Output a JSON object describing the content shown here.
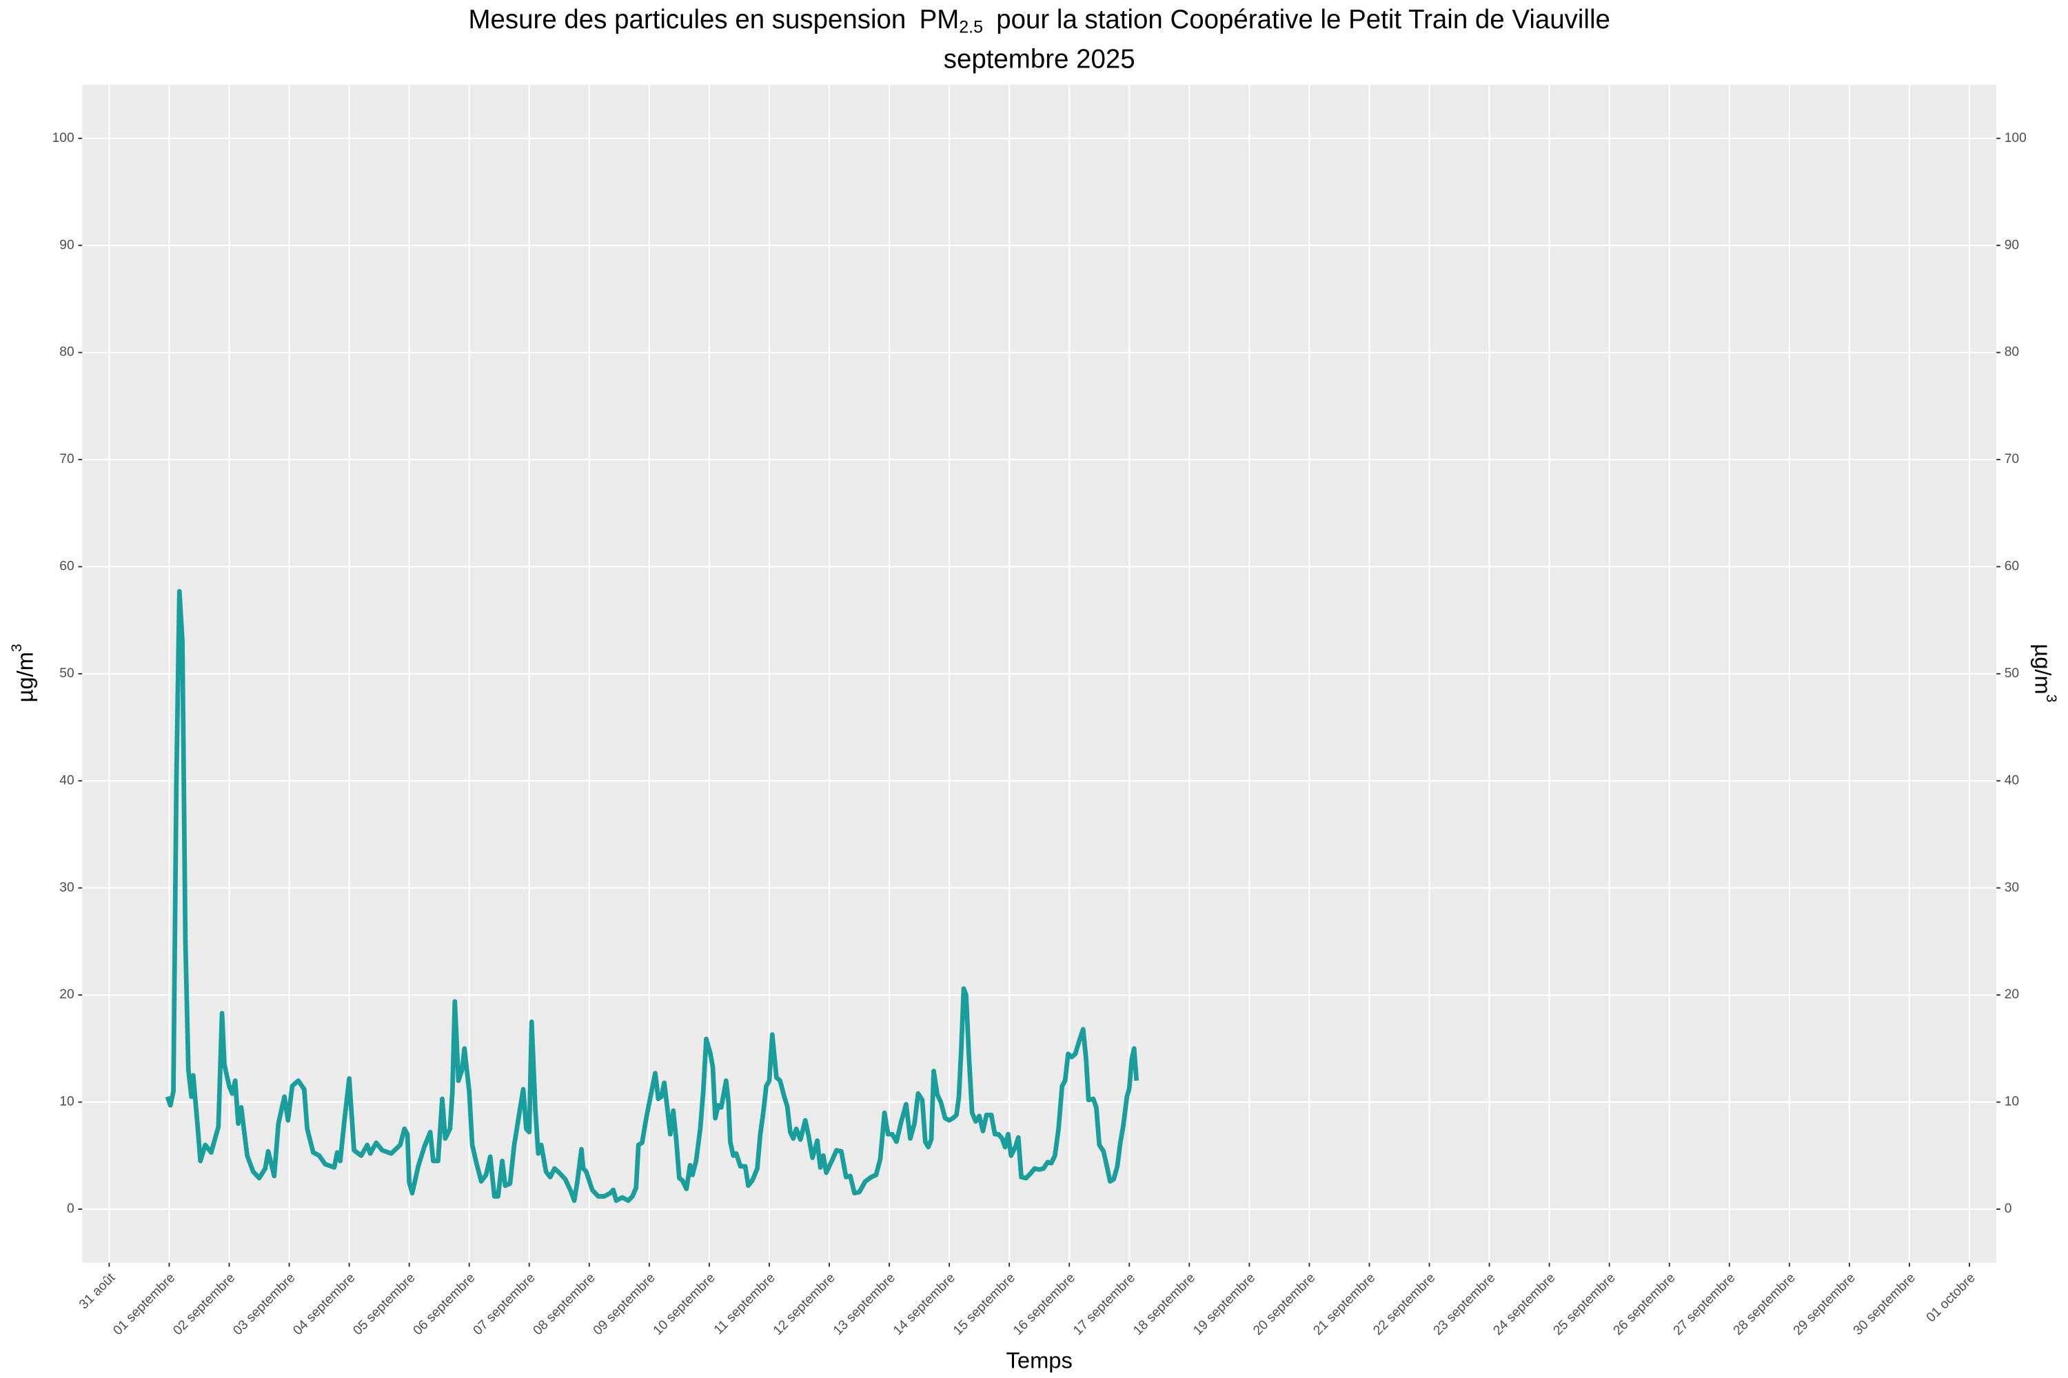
{
  "chart_data": {
    "type": "line",
    "title": [
      "Mesure des particules en suspension",
      "PM",
      "2.5",
      "pour la station Coopérative le Petit Train de Viauville"
    ],
    "subtitle": "septembre 2025",
    "xlabel": "Temps",
    "ylabel": [
      "µg/m",
      "3"
    ],
    "y2label": [
      "µg/m",
      "3"
    ],
    "color": "#1a9e9c",
    "grid": true,
    "xlim": [
      -0.45,
      31.45
    ],
    "ylim": [
      -5,
      105
    ],
    "y2lim": [
      -5,
      105
    ],
    "yticks": [
      0,
      10,
      20,
      30,
      40,
      50,
      60,
      70,
      80,
      90,
      100
    ],
    "y2ticks": [
      0,
      10,
      20,
      30,
      40,
      50,
      60,
      70,
      80,
      90,
      100
    ],
    "xticks": [
      {
        "value": 0,
        "label": "31 août"
      },
      {
        "value": 1,
        "label": "01 septembre"
      },
      {
        "value": 2,
        "label": "02 septembre"
      },
      {
        "value": 3,
        "label": "03 septembre"
      },
      {
        "value": 4,
        "label": "04 septembre"
      },
      {
        "value": 5,
        "label": "05 septembre"
      },
      {
        "value": 6,
        "label": "06 septembre"
      },
      {
        "value": 7,
        "label": "07 septembre"
      },
      {
        "value": 8,
        "label": "08 septembre"
      },
      {
        "value": 9,
        "label": "09 septembre"
      },
      {
        "value": 10,
        "label": "10 septembre"
      },
      {
        "value": 11,
        "label": "11 septembre"
      },
      {
        "value": 12,
        "label": "12 septembre"
      },
      {
        "value": 13,
        "label": "13 septembre"
      },
      {
        "value": 14,
        "label": "14 septembre"
      },
      {
        "value": 15,
        "label": "15 septembre"
      },
      {
        "value": 16,
        "label": "16 septembre"
      },
      {
        "value": 17,
        "label": "17 septembre"
      },
      {
        "value": 18,
        "label": "18 septembre"
      },
      {
        "value": 19,
        "label": "19 septembre"
      },
      {
        "value": 20,
        "label": "20 septembre"
      },
      {
        "value": 21,
        "label": "21 septembre"
      },
      {
        "value": 22,
        "label": "22 septembre"
      },
      {
        "value": 23,
        "label": "23 septembre"
      },
      {
        "value": 24,
        "label": "24 septembre"
      },
      {
        "value": 25,
        "label": "25 septembre"
      },
      {
        "value": 26,
        "label": "26 septembre"
      },
      {
        "value": 27,
        "label": "27 septembre"
      },
      {
        "value": 28,
        "label": "28 septembre"
      },
      {
        "value": 29,
        "label": "29 septembre"
      },
      {
        "value": 30,
        "label": "30 septembre"
      },
      {
        "value": 31,
        "label": "01 octobre"
      }
    ],
    "x": [
      0.97,
      1.02,
      1.07,
      1.12,
      1.17,
      1.22,
      1.27,
      1.32,
      1.37,
      1.4,
      1.47,
      1.52,
      1.6,
      1.7,
      1.82,
      1.88,
      1.92,
      2.0,
      2.05,
      2.1,
      2.15,
      2.2,
      2.3,
      2.4,
      2.5,
      2.6,
      2.65,
      2.75,
      2.82,
      2.92,
      2.98,
      3.05,
      3.15,
      3.25,
      3.3,
      3.4,
      3.5,
      3.6,
      3.75,
      3.8,
      3.85,
      3.92,
      4.0,
      4.08,
      4.2,
      4.3,
      4.35,
      4.45,
      4.55,
      4.7,
      4.85,
      4.92,
      4.97,
      5.0,
      5.05,
      5.15,
      5.25,
      5.35,
      5.4,
      5.48,
      5.55,
      5.6,
      5.68,
      5.72,
      5.76,
      5.82,
      5.88,
      5.92,
      6.0,
      6.05,
      6.12,
      6.2,
      6.28,
      6.35,
      6.42,
      6.48,
      6.55,
      6.6,
      6.68,
      6.75,
      6.85,
      6.9,
      6.95,
      7.0,
      7.04,
      7.1,
      7.15,
      7.2,
      7.28,
      7.35,
      7.42,
      7.5,
      7.6,
      7.7,
      7.75,
      7.8,
      7.87,
      7.9,
      7.95,
      8.05,
      8.15,
      8.25,
      8.35,
      8.4,
      8.45,
      8.55,
      8.65,
      8.72,
      8.78,
      8.82,
      8.88,
      8.95,
      9.02,
      9.1,
      9.15,
      9.2,
      9.25,
      9.3,
      9.35,
      9.4,
      9.45,
      9.5,
      9.55,
      9.62,
      9.68,
      9.72,
      9.78,
      9.85,
      9.9,
      9.95,
      10.02,
      10.06,
      10.1,
      10.15,
      10.2,
      10.28,
      10.32,
      10.35,
      10.4,
      10.45,
      10.52,
      10.6,
      10.65,
      10.72,
      10.8,
      10.85,
      10.9,
      10.95,
      11.0,
      11.05,
      11.12,
      11.18,
      11.25,
      11.3,
      11.35,
      11.4,
      11.45,
      11.52,
      11.6,
      11.65,
      11.72,
      11.8,
      11.85,
      11.9,
      11.95,
      12.05,
      12.12,
      12.2,
      12.28,
      12.35,
      12.42,
      12.5,
      12.6,
      12.7,
      12.78,
      12.85,
      12.92,
      12.98,
      13.05,
      13.12,
      13.2,
      13.28,
      13.35,
      13.42,
      13.48,
      13.55,
      13.6,
      13.65,
      13.7,
      13.74,
      13.8,
      13.86,
      13.93,
      14.0,
      14.06,
      14.12,
      14.16,
      14.2,
      14.24,
      14.28,
      14.33,
      14.38,
      14.44,
      14.5,
      14.56,
      14.62,
      14.7,
      14.76,
      14.82,
      14.88,
      14.93,
      14.98,
      15.03,
      15.1,
      15.15,
      15.2,
      15.28,
      15.35,
      15.42,
      15.5,
      15.57,
      15.64,
      15.7,
      15.76,
      15.82,
      15.88,
      15.93,
      15.98,
      16.04,
      16.1,
      16.17,
      16.23,
      16.28,
      16.32,
      16.4,
      16.45,
      16.5,
      16.57,
      16.63,
      16.68,
      16.74,
      16.8,
      16.85,
      16.9,
      16.96,
      17.0,
      17.04,
      17.08,
      17.12
    ],
    "values": [
      10.5,
      9.7,
      11,
      40,
      57.7,
      53,
      25,
      13,
      10.5,
      12.5,
      8,
      4.5,
      6,
      5.3,
      7.7,
      18.3,
      13.5,
      11.5,
      10.8,
      12,
      8,
      9.5,
      5,
      3.5,
      2.9,
      3.8,
      5.4,
      3.1,
      8,
      10.5,
      8.3,
      11.5,
      12,
      11.2,
      7.5,
      5.3,
      5,
      4.2,
      3.9,
      5.3,
      4.5,
      8.3,
      12.2,
      5.5,
      5,
      6,
      5.2,
      6.2,
      5.5,
      5.2,
      6,
      7.5,
      7,
      2.5,
      1.5,
      4,
      5.8,
      7.2,
      4.5,
      4.5,
      10.3,
      6.6,
      7.5,
      11,
      19.4,
      12,
      13,
      15,
      11,
      6,
      4.3,
      2.6,
      3.2,
      4.9,
      1.2,
      1.2,
      4.5,
      2.2,
      2.4,
      6,
      9.5,
      11.2,
      7.5,
      7.2,
      17.5,
      9.5,
      5.2,
      6,
      3.5,
      3,
      3.8,
      3.4,
      2.8,
      1.6,
      0.8,
      2.5,
      5.6,
      3.8,
      3.5,
      1.8,
      1.2,
      1.2,
      1.5,
      1.8,
      0.8,
      1.1,
      0.8,
      1.2,
      2,
      6,
      6.2,
      8.5,
      10.5,
      12.7,
      10.3,
      10.5,
      11.8,
      9.5,
      7,
      9.2,
      6.5,
      2.9,
      2.7,
      1.9,
      4.1,
      3.2,
      4.5,
      7.5,
      11,
      15.9,
      14.5,
      13.2,
      8.5,
      9.7,
      9.5,
      12,
      10,
      6.3,
      5,
      5.2,
      4,
      4,
      2.2,
      2.7,
      3.8,
      7,
      9,
      11.5,
      12,
      16.3,
      12.3,
      12,
      10.5,
      9.6,
      7.2,
      6.6,
      7.5,
      6.5,
      8.3,
      7,
      4.8,
      6.4,
      3.9,
      5,
      3.4,
      4.6,
      5.5,
      5.4,
      3,
      3.1,
      1.5,
      1.6,
      2.6,
      3,
      3.2,
      4.7,
      9,
      7,
      7,
      6.3,
      8.2,
      9.8,
      6.6,
      8,
      10.8,
      10.2,
      6.3,
      5.8,
      6.5,
      12.9,
      10.7,
      10,
      8.5,
      8.3,
      8.5,
      8.8,
      10.5,
      15,
      20.6,
      20,
      14,
      9,
      8.2,
      8.7,
      7.3,
      8.8,
      8.8,
      7,
      7,
      6.6,
      5.8,
      7,
      5,
      5.8,
      6.7,
      3,
      2.9,
      3.3,
      3.8,
      3.7,
      3.8,
      4.4,
      4.3,
      5,
      7.5,
      11.5,
      12,
      14.5,
      14.2,
      14.5,
      15.8,
      16.8,
      14,
      10.2,
      10.3,
      9.5,
      6,
      5.4,
      3.9,
      2.6,
      2.8,
      4,
      6.2,
      7.8,
      10.5,
      11.3,
      14,
      15,
      12
    ]
  }
}
